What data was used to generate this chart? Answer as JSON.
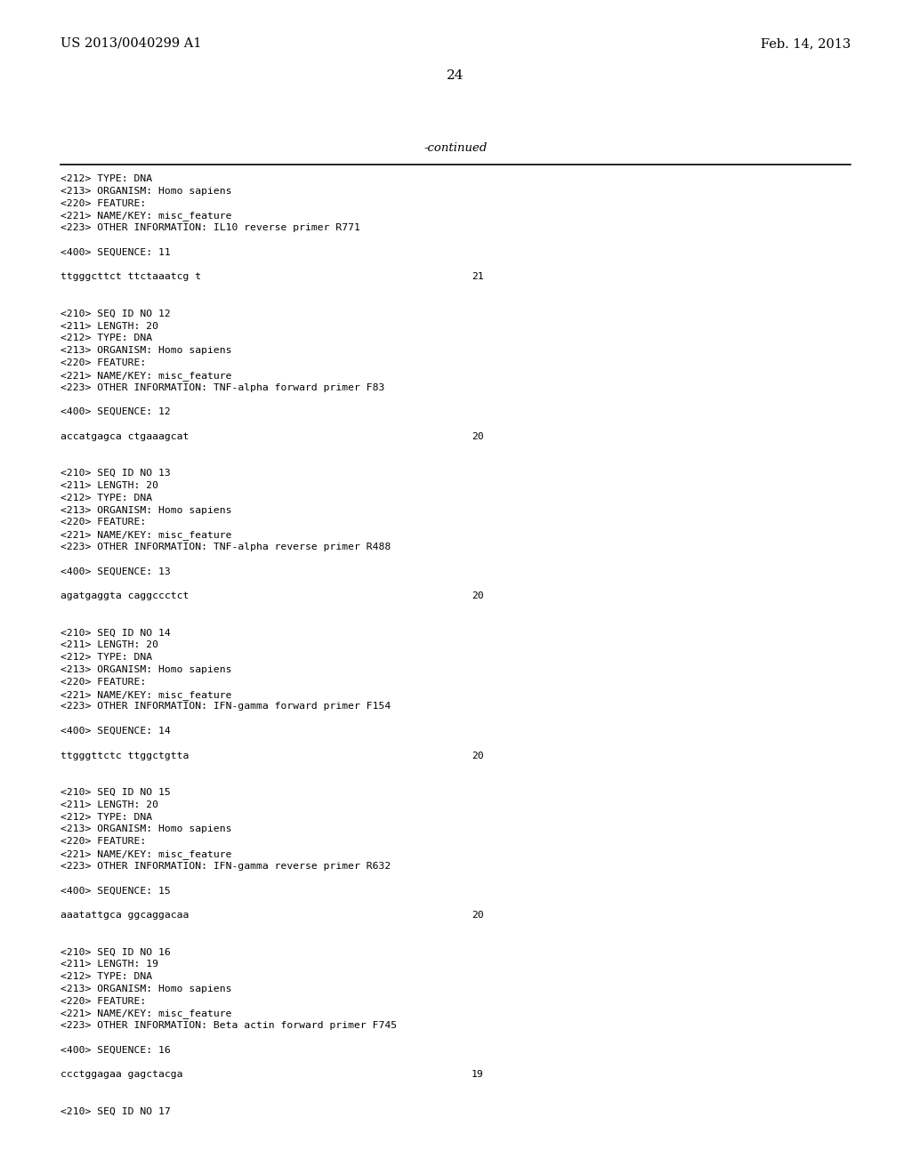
{
  "header_left": "US 2013/0040299 A1",
  "header_right": "Feb. 14, 2013",
  "page_number": "24",
  "continued_label": "-continued",
  "background_color": "#ffffff",
  "text_color": "#000000",
  "content_lines": [
    {
      "text": "<212> TYPE: DNA",
      "seq_num": null
    },
    {
      "text": "<213> ORGANISM: Homo sapiens",
      "seq_num": null
    },
    {
      "text": "<220> FEATURE:",
      "seq_num": null
    },
    {
      "text": "<221> NAME/KEY: misc_feature",
      "seq_num": null
    },
    {
      "text": "<223> OTHER INFORMATION: IL10 reverse primer R771",
      "seq_num": null
    },
    {
      "text": "",
      "seq_num": null
    },
    {
      "text": "<400> SEQUENCE: 11",
      "seq_num": null
    },
    {
      "text": "",
      "seq_num": null
    },
    {
      "text": "ttgggcttct ttctaaatcg t",
      "seq_num": "21"
    },
    {
      "text": "",
      "seq_num": null
    },
    {
      "text": "",
      "seq_num": null
    },
    {
      "text": "<210> SEQ ID NO 12",
      "seq_num": null
    },
    {
      "text": "<211> LENGTH: 20",
      "seq_num": null
    },
    {
      "text": "<212> TYPE: DNA",
      "seq_num": null
    },
    {
      "text": "<213> ORGANISM: Homo sapiens",
      "seq_num": null
    },
    {
      "text": "<220> FEATURE:",
      "seq_num": null
    },
    {
      "text": "<221> NAME/KEY: misc_feature",
      "seq_num": null
    },
    {
      "text": "<223> OTHER INFORMATION: TNF-alpha forward primer F83",
      "seq_num": null
    },
    {
      "text": "",
      "seq_num": null
    },
    {
      "text": "<400> SEQUENCE: 12",
      "seq_num": null
    },
    {
      "text": "",
      "seq_num": null
    },
    {
      "text": "accatgagca ctgaaagcat",
      "seq_num": "20"
    },
    {
      "text": "",
      "seq_num": null
    },
    {
      "text": "",
      "seq_num": null
    },
    {
      "text": "<210> SEQ ID NO 13",
      "seq_num": null
    },
    {
      "text": "<211> LENGTH: 20",
      "seq_num": null
    },
    {
      "text": "<212> TYPE: DNA",
      "seq_num": null
    },
    {
      "text": "<213> ORGANISM: Homo sapiens",
      "seq_num": null
    },
    {
      "text": "<220> FEATURE:",
      "seq_num": null
    },
    {
      "text": "<221> NAME/KEY: misc_feature",
      "seq_num": null
    },
    {
      "text": "<223> OTHER INFORMATION: TNF-alpha reverse primer R488",
      "seq_num": null
    },
    {
      "text": "",
      "seq_num": null
    },
    {
      "text": "<400> SEQUENCE: 13",
      "seq_num": null
    },
    {
      "text": "",
      "seq_num": null
    },
    {
      "text": "agatgaggta caggccctct",
      "seq_num": "20"
    },
    {
      "text": "",
      "seq_num": null
    },
    {
      "text": "",
      "seq_num": null
    },
    {
      "text": "<210> SEQ ID NO 14",
      "seq_num": null
    },
    {
      "text": "<211> LENGTH: 20",
      "seq_num": null
    },
    {
      "text": "<212> TYPE: DNA",
      "seq_num": null
    },
    {
      "text": "<213> ORGANISM: Homo sapiens",
      "seq_num": null
    },
    {
      "text": "<220> FEATURE:",
      "seq_num": null
    },
    {
      "text": "<221> NAME/KEY: misc_feature",
      "seq_num": null
    },
    {
      "text": "<223> OTHER INFORMATION: IFN-gamma forward primer F154",
      "seq_num": null
    },
    {
      "text": "",
      "seq_num": null
    },
    {
      "text": "<400> SEQUENCE: 14",
      "seq_num": null
    },
    {
      "text": "",
      "seq_num": null
    },
    {
      "text": "ttgggttctc ttggctgtta",
      "seq_num": "20"
    },
    {
      "text": "",
      "seq_num": null
    },
    {
      "text": "",
      "seq_num": null
    },
    {
      "text": "<210> SEQ ID NO 15",
      "seq_num": null
    },
    {
      "text": "<211> LENGTH: 20",
      "seq_num": null
    },
    {
      "text": "<212> TYPE: DNA",
      "seq_num": null
    },
    {
      "text": "<213> ORGANISM: Homo sapiens",
      "seq_num": null
    },
    {
      "text": "<220> FEATURE:",
      "seq_num": null
    },
    {
      "text": "<221> NAME/KEY: misc_feature",
      "seq_num": null
    },
    {
      "text": "<223> OTHER INFORMATION: IFN-gamma reverse primer R632",
      "seq_num": null
    },
    {
      "text": "",
      "seq_num": null
    },
    {
      "text": "<400> SEQUENCE: 15",
      "seq_num": null
    },
    {
      "text": "",
      "seq_num": null
    },
    {
      "text": "aaatattgca ggcaggacaa",
      "seq_num": "20"
    },
    {
      "text": "",
      "seq_num": null
    },
    {
      "text": "",
      "seq_num": null
    },
    {
      "text": "<210> SEQ ID NO 16",
      "seq_num": null
    },
    {
      "text": "<211> LENGTH: 19",
      "seq_num": null
    },
    {
      "text": "<212> TYPE: DNA",
      "seq_num": null
    },
    {
      "text": "<213> ORGANISM: Homo sapiens",
      "seq_num": null
    },
    {
      "text": "<220> FEATURE:",
      "seq_num": null
    },
    {
      "text": "<221> NAME/KEY: misc_feature",
      "seq_num": null
    },
    {
      "text": "<223> OTHER INFORMATION: Beta actin forward primer F745",
      "seq_num": null
    },
    {
      "text": "",
      "seq_num": null
    },
    {
      "text": "<400> SEQUENCE: 16",
      "seq_num": null
    },
    {
      "text": "",
      "seq_num": null
    },
    {
      "text": "ccctggagaa gagctacga",
      "seq_num": "19"
    },
    {
      "text": "",
      "seq_num": null
    },
    {
      "text": "",
      "seq_num": null
    },
    {
      "text": "<210> SEQ ID NO 17",
      "seq_num": null
    }
  ]
}
